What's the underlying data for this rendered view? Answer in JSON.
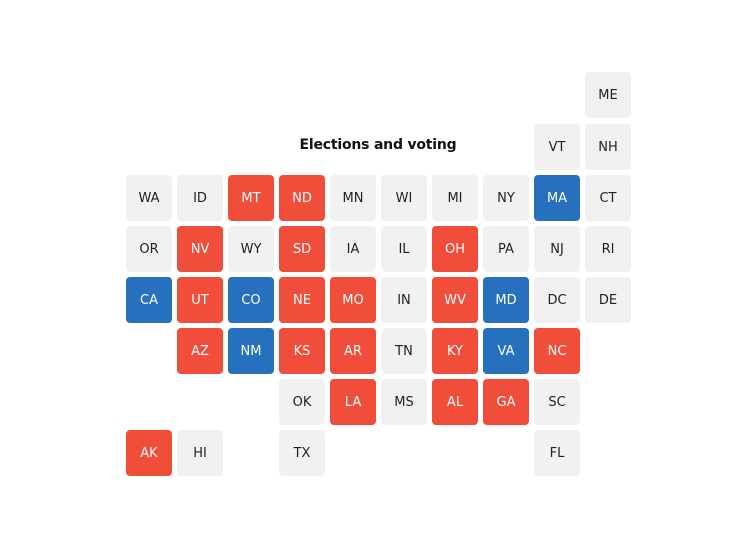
{
  "title": "Elections and voting",
  "colors": {
    "neutral": "#f1f1f1",
    "red": "#f04e3a",
    "blue": "#2770bd",
    "neutral_text": "#222222",
    "colored_text": "#ffffff"
  },
  "states": [
    {
      "abbr": "ME",
      "row": 0,
      "col": 9,
      "status": "neutral"
    },
    {
      "abbr": "VT",
      "row": 1,
      "col": 8,
      "status": "neutral"
    },
    {
      "abbr": "NH",
      "row": 1,
      "col": 9,
      "status": "neutral"
    },
    {
      "abbr": "WA",
      "row": 2,
      "col": 0,
      "status": "neutral"
    },
    {
      "abbr": "ID",
      "row": 2,
      "col": 1,
      "status": "neutral"
    },
    {
      "abbr": "MT",
      "row": 2,
      "col": 2,
      "status": "red"
    },
    {
      "abbr": "ND",
      "row": 2,
      "col": 3,
      "status": "red"
    },
    {
      "abbr": "MN",
      "row": 2,
      "col": 4,
      "status": "neutral"
    },
    {
      "abbr": "WI",
      "row": 2,
      "col": 5,
      "status": "neutral"
    },
    {
      "abbr": "MI",
      "row": 2,
      "col": 6,
      "status": "neutral"
    },
    {
      "abbr": "NY",
      "row": 2,
      "col": 7,
      "status": "neutral"
    },
    {
      "abbr": "MA",
      "row": 2,
      "col": 8,
      "status": "blue"
    },
    {
      "abbr": "CT",
      "row": 2,
      "col": 9,
      "status": "neutral"
    },
    {
      "abbr": "OR",
      "row": 3,
      "col": 0,
      "status": "neutral"
    },
    {
      "abbr": "NV",
      "row": 3,
      "col": 1,
      "status": "red"
    },
    {
      "abbr": "WY",
      "row": 3,
      "col": 2,
      "status": "neutral"
    },
    {
      "abbr": "SD",
      "row": 3,
      "col": 3,
      "status": "red"
    },
    {
      "abbr": "IA",
      "row": 3,
      "col": 4,
      "status": "neutral"
    },
    {
      "abbr": "IL",
      "row": 3,
      "col": 5,
      "status": "neutral"
    },
    {
      "abbr": "OH",
      "row": 3,
      "col": 6,
      "status": "red"
    },
    {
      "abbr": "PA",
      "row": 3,
      "col": 7,
      "status": "neutral"
    },
    {
      "abbr": "NJ",
      "row": 3,
      "col": 8,
      "status": "neutral"
    },
    {
      "abbr": "RI",
      "row": 3,
      "col": 9,
      "status": "neutral"
    },
    {
      "abbr": "CA",
      "row": 4,
      "col": 0,
      "status": "blue"
    },
    {
      "abbr": "UT",
      "row": 4,
      "col": 1,
      "status": "red"
    },
    {
      "abbr": "CO",
      "row": 4,
      "col": 2,
      "status": "blue"
    },
    {
      "abbr": "NE",
      "row": 4,
      "col": 3,
      "status": "red"
    },
    {
      "abbr": "MO",
      "row": 4,
      "col": 4,
      "status": "red"
    },
    {
      "abbr": "IN",
      "row": 4,
      "col": 5,
      "status": "neutral"
    },
    {
      "abbr": "WV",
      "row": 4,
      "col": 6,
      "status": "red"
    },
    {
      "abbr": "MD",
      "row": 4,
      "col": 7,
      "status": "blue"
    },
    {
      "abbr": "DC",
      "row": 4,
      "col": 8,
      "status": "neutral"
    },
    {
      "abbr": "DE",
      "row": 4,
      "col": 9,
      "status": "neutral"
    },
    {
      "abbr": "AZ",
      "row": 5,
      "col": 1,
      "status": "red"
    },
    {
      "abbr": "NM",
      "row": 5,
      "col": 2,
      "status": "blue"
    },
    {
      "abbr": "KS",
      "row": 5,
      "col": 3,
      "status": "red"
    },
    {
      "abbr": "AR",
      "row": 5,
      "col": 4,
      "status": "red"
    },
    {
      "abbr": "TN",
      "row": 5,
      "col": 5,
      "status": "neutral"
    },
    {
      "abbr": "KY",
      "row": 5,
      "col": 6,
      "status": "red"
    },
    {
      "abbr": "VA",
      "row": 5,
      "col": 7,
      "status": "blue"
    },
    {
      "abbr": "NC",
      "row": 5,
      "col": 8,
      "status": "red"
    },
    {
      "abbr": "OK",
      "row": 6,
      "col": 3,
      "status": "neutral"
    },
    {
      "abbr": "LA",
      "row": 6,
      "col": 4,
      "status": "red"
    },
    {
      "abbr": "MS",
      "row": 6,
      "col": 5,
      "status": "neutral"
    },
    {
      "abbr": "AL",
      "row": 6,
      "col": 6,
      "status": "red"
    },
    {
      "abbr": "GA",
      "row": 6,
      "col": 7,
      "status": "red"
    },
    {
      "abbr": "SC",
      "row": 6,
      "col": 8,
      "status": "neutral"
    },
    {
      "abbr": "AK",
      "row": 7,
      "col": 0,
      "status": "red"
    },
    {
      "abbr": "HI",
      "row": 7,
      "col": 1,
      "status": "neutral"
    },
    {
      "abbr": "TX",
      "row": 7,
      "col": 3,
      "status": "neutral"
    },
    {
      "abbr": "FL",
      "row": 7,
      "col": 8,
      "status": "neutral"
    }
  ]
}
